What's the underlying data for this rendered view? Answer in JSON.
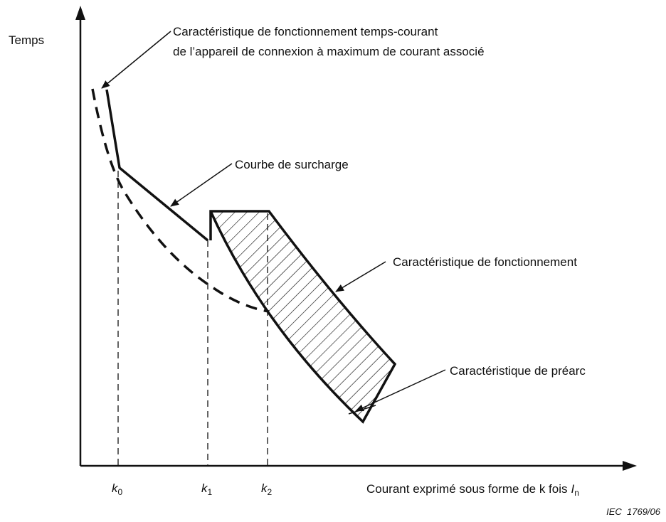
{
  "y_axis_label": "Temps",
  "annotations": {
    "overcurrent": [
      "Caractéristique de fonctionnement temps-courant",
      "de l’appareil de connexion à maximum de courant associé"
    ],
    "overload": "Courbe de surcharge",
    "operating": "Caractéristique de fonctionnement",
    "prearcing": "Caractéristique de préarc"
  },
  "x_axis_label": {
    "text": "Courant exprimé sous forme de k fois",
    "symbol": "I",
    "subscript": "n"
  },
  "markers": [
    {
      "symbol": "k",
      "subscript": "0"
    },
    {
      "symbol": "k",
      "subscript": "1"
    },
    {
      "symbol": "k",
      "subscript": "2"
    }
  ],
  "figure_id": "IEC  1769/06"
}
